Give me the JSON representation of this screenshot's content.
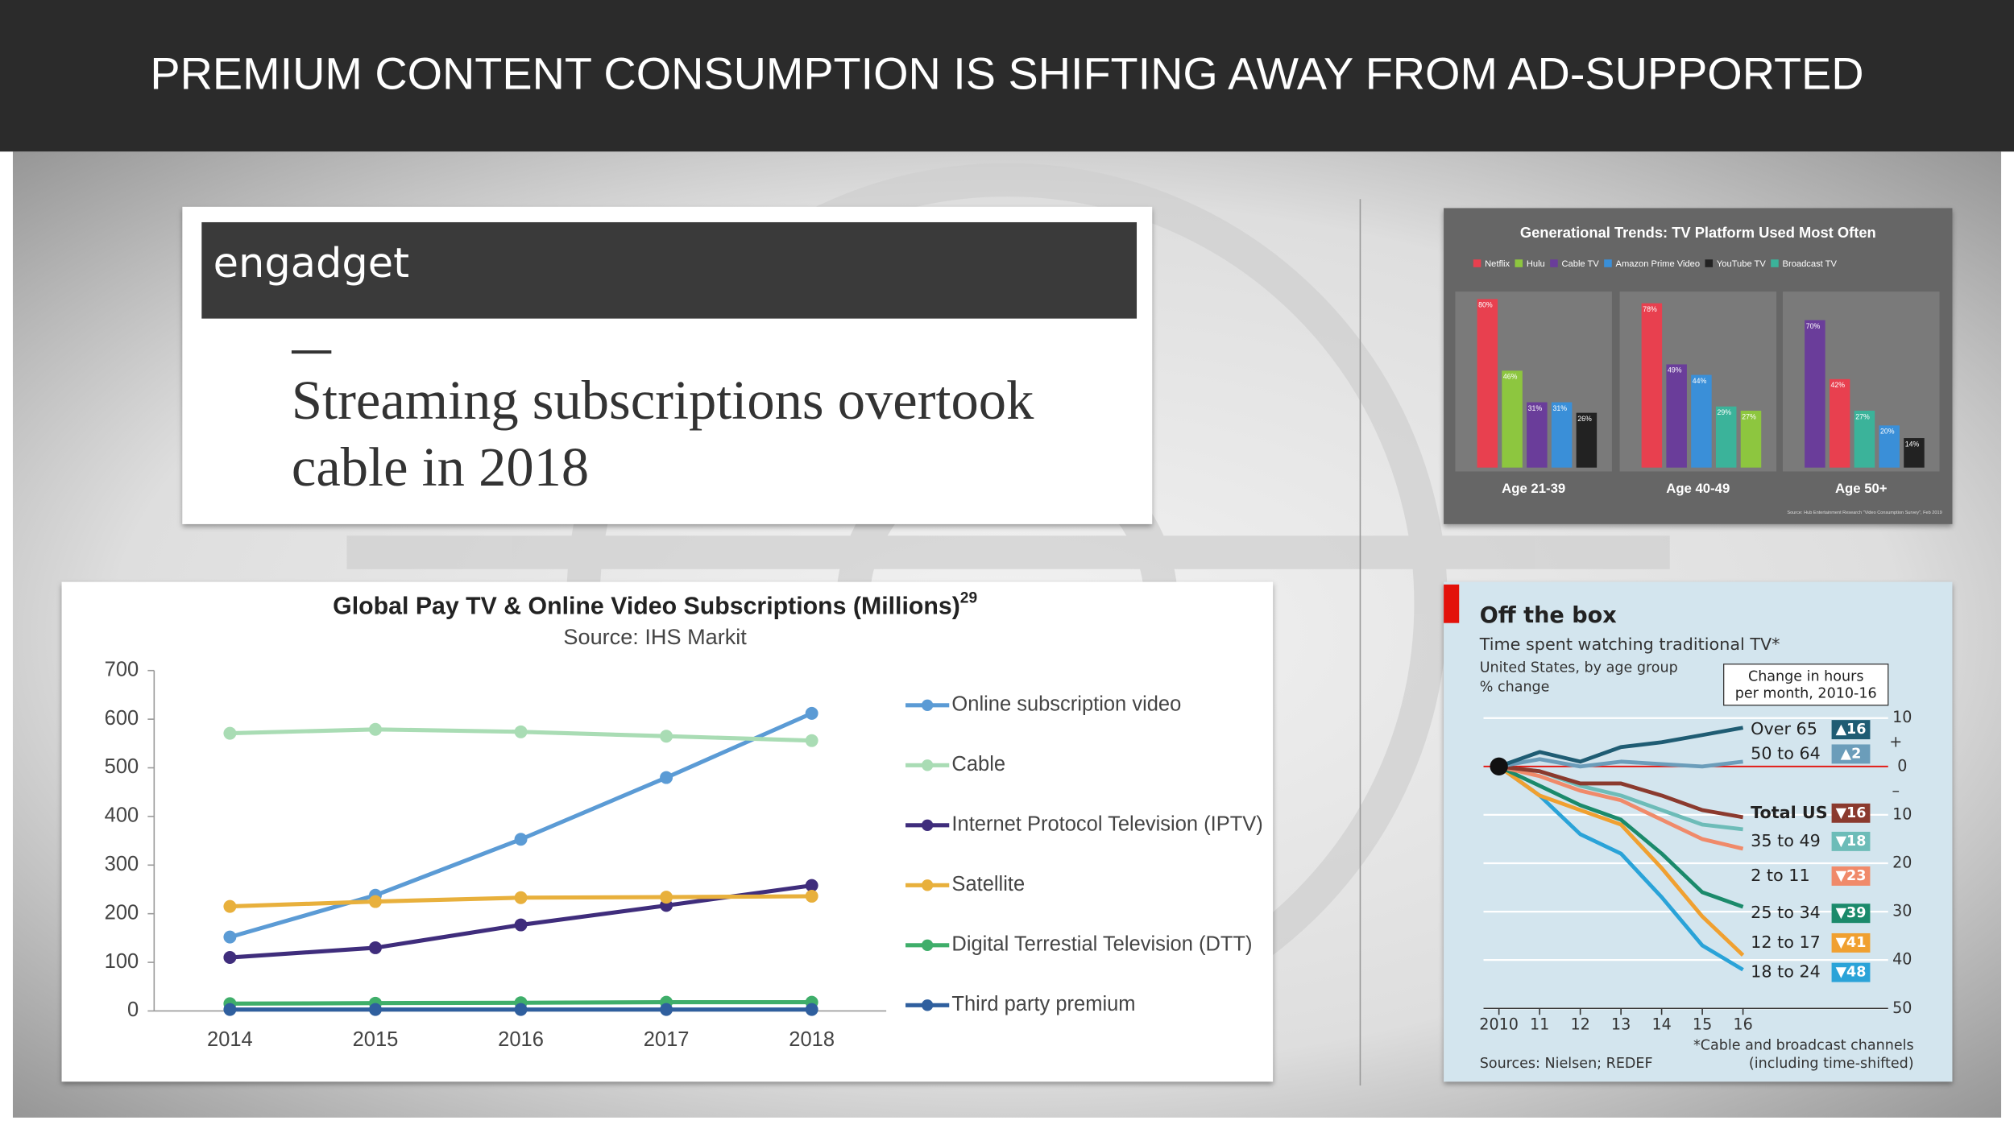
{
  "title": "PREMIUM CONTENT CONSUMPTION IS SHIFTING AWAY FROM AD-SUPPORTED",
  "article": {
    "brand": "engadget",
    "headline": [
      "Streaming subscriptions overtook",
      "cable in 2018"
    ]
  },
  "chart_data": [
    {
      "type": "line",
      "title": "Global Pay TV & Online Video Subscriptions (Millions)",
      "title_note": "29",
      "subtitle": "Source: IHS Markit",
      "categories": [
        "2014",
        "2015",
        "2016",
        "2017",
        "2018"
      ],
      "ylim": [
        0,
        700
      ],
      "yticks": [
        0,
        100,
        200,
        300,
        400,
        500,
        600,
        700
      ],
      "legend": "right",
      "series": [
        {
          "name": "Online subscription video",
          "color": "#5b9bd5",
          "values": [
            152,
            238,
            353,
            480,
            612
          ]
        },
        {
          "name": "Cable",
          "color": "#a9dcb4",
          "values": [
            571,
            579,
            574,
            565,
            556
          ]
        },
        {
          "name": "Internet Protocol Television (IPTV)",
          "color": "#3f2d7c",
          "values": [
            110,
            130,
            177,
            217,
            258
          ]
        },
        {
          "name": "Satellite",
          "color": "#e8b03c",
          "values": [
            215,
            225,
            233,
            234,
            236
          ]
        },
        {
          "name": "Digital Terrestial Television (DTT)",
          "color": "#3fae6a",
          "values": [
            15,
            16,
            17,
            18,
            18
          ]
        },
        {
          "name": "Third party premium",
          "color": "#2f5f9e",
          "values": [
            3,
            3,
            3,
            3,
            3
          ]
        }
      ]
    },
    {
      "type": "bar",
      "title": "Generational Trends: TV Platform Used Most Often",
      "source": "Source: Hub Entertainment Research \"Video Consumption Survey\", Feb 2019",
      "categories": [
        "Age 21-39",
        "Age 40-49",
        "Age 50+"
      ],
      "legend": "top",
      "series": [
        {
          "name": "Netflix",
          "color": "#e8404f",
          "values": [
            80,
            78,
            42
          ],
          "value_labels": [
            "80%",
            "78%",
            "42%"
          ]
        },
        {
          "name": "Hulu",
          "color": "#8dc63f",
          "values": [
            46,
            27,
            null
          ],
          "value_labels": [
            "46%",
            "27%",
            null
          ]
        },
        {
          "name": "Cable TV",
          "color": "#6a3d9a",
          "values": [
            31,
            49,
            70
          ],
          "value_labels": [
            "31%",
            "49%",
            "70%"
          ]
        },
        {
          "name": "Amazon Prime Video",
          "color": "#3a8fd8",
          "values": [
            31,
            44,
            20
          ],
          "value_labels": [
            "31%",
            "44%",
            "20%"
          ]
        },
        {
          "name": "YouTube TV",
          "color": "#222222",
          "values": [
            26,
            null,
            14
          ],
          "value_labels": [
            "26%",
            null,
            "14%"
          ]
        },
        {
          "name": "Broadcast TV",
          "color": "#3bb39a",
          "values": [
            null,
            29,
            27
          ],
          "value_labels": [
            null,
            "29%",
            "27%"
          ]
        }
      ]
    },
    {
      "type": "line",
      "title": "Off the box",
      "subtitle": "Time spent watching traditional TV*",
      "notes": [
        "United States, by age group",
        "% change"
      ],
      "change_header": [
        "Change in hours",
        "per month, 2010-16"
      ],
      "source": "Sources: Nielsen; REDEF",
      "footnote": [
        "*Cable and broadcast channels",
        "(including time-shifted)"
      ],
      "x": [
        2010,
        2011,
        2012,
        2013,
        2014,
        2015,
        2016
      ],
      "xlim": [
        2010,
        2016
      ],
      "xticks": [
        2010,
        {
          "value": 2011,
          "label": "11"
        },
        {
          "value": 2012,
          "label": "12"
        },
        {
          "value": 2013,
          "label": "13"
        },
        {
          "value": 2014,
          "label": "14"
        },
        {
          "value": 2015,
          "label": "15"
        },
        {
          "value": 2016,
          "label": "16"
        }
      ],
      "ylim": [
        -50,
        10
      ],
      "yticks": [
        10,
        0,
        {
          "value": -10,
          "label": "10"
        },
        {
          "value": -20,
          "label": "20"
        },
        {
          "value": -30,
          "label": "30"
        },
        {
          "value": -40,
          "label": "40"
        },
        {
          "value": -50,
          "label": "50"
        }
      ],
      "y_sign_labels": [
        "+",
        "–"
      ],
      "y_axis_side": "right",
      "grid": true,
      "legend": "direct",
      "series": [
        {
          "name": "Over 65",
          "color": "#1f5c73",
          "change": "▲16",
          "values": [
            0,
            3,
            1,
            4,
            5,
            6.5,
            8
          ]
        },
        {
          "name": "50 to 64",
          "color": "#6b9dba",
          "change": "▲2",
          "values": [
            0,
            1.5,
            0,
            1,
            0.5,
            0,
            1
          ]
        },
        {
          "name": "Total US",
          "color": "#8b3a2e",
          "change": "▼16",
          "values": [
            0,
            -1,
            -3.5,
            -3.5,
            -6,
            -9,
            -10.5
          ]
        },
        {
          "name": "35 to 49",
          "color": "#6dbcb8",
          "change": "▼18",
          "values": [
            0,
            -1,
            -4,
            -6,
            -9,
            -12,
            -13
          ]
        },
        {
          "name": "2 to 11",
          "color": "#f08a6a",
          "change": "▼23",
          "values": [
            0,
            -2,
            -5,
            -7,
            -11,
            -15,
            -17
          ]
        },
        {
          "name": "25 to 34",
          "color": "#1b8a6b",
          "change": "▼39",
          "values": [
            0,
            -4,
            -8,
            -11,
            -18,
            -26,
            -29
          ]
        },
        {
          "name": "12 to 17",
          "color": "#f0a030",
          "change": "▼41",
          "values": [
            0,
            -6,
            -9,
            -12,
            -21,
            -31,
            -39
          ]
        },
        {
          "name": "18 to 24",
          "color": "#2aa3d8",
          "change": "▼48",
          "values": [
            0,
            -6,
            -14,
            -18,
            -27,
            -37,
            -42
          ]
        }
      ]
    }
  ]
}
